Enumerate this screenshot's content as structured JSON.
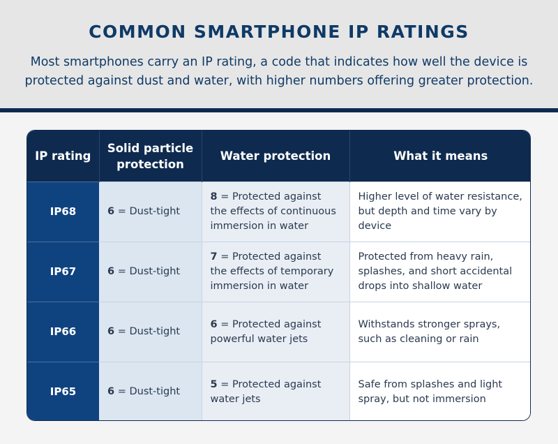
{
  "title": "COMMON SMARTPHONE IP RATINGS",
  "subtitle": "Most smartphones carry an IP rating, a code that indicates how well the device is protected against dust and water, with higher numbers offering greater protection.",
  "colors": {
    "title": "#0f3a66",
    "header_bg": "#0e2a4f",
    "rating_col": "#0f4380",
    "solid_col": "#dbe6f1",
    "water_col": "#e9eef5"
  },
  "table": {
    "headers": {
      "rating": "IP rating",
      "solid": "Solid particle protection",
      "water": "Water protection",
      "means": "What it means"
    },
    "rows": [
      {
        "rating": "IP68",
        "solid_num": "6",
        "solid_text": " = Dust-tight",
        "water_num": "8",
        "water_text": " = Protected against the effects of continuous immersion in water",
        "means": "Higher level of water resistance, but depth and time vary by device"
      },
      {
        "rating": "IP67",
        "solid_num": "6",
        "solid_text": " = Dust-tight",
        "water_num": "7",
        "water_text": " = Protected against the effects of temporary immersion in water",
        "means": "Protected from heavy rain, splashes, and short accidental drops into shallow water"
      },
      {
        "rating": "IP66",
        "solid_num": "6",
        "solid_text": " = Dust-tight",
        "water_num": "6",
        "water_text": " = Protected against powerful water jets",
        "means": "Withstands stronger sprays, such as cleaning or rain"
      },
      {
        "rating": "IP65",
        "solid_num": "6",
        "solid_text": " = Dust-tight",
        "water_num": "5",
        "water_text": " = Protected against water jets",
        "means": "Safe from splashes and light spray, but not immersion"
      }
    ]
  }
}
